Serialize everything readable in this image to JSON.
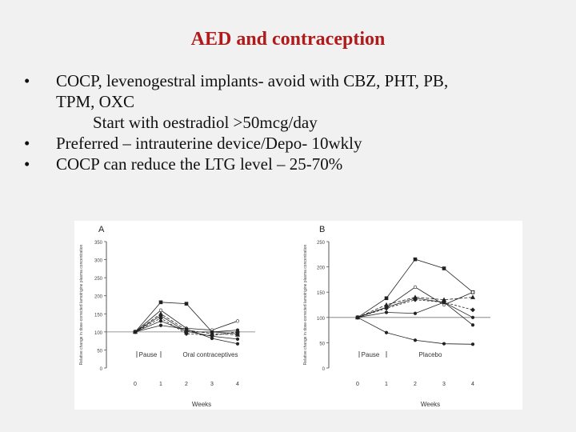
{
  "slide": {
    "title": "AED and contraception",
    "bullets": [
      {
        "marker": "•",
        "line1": "COCP, levenogestral implants- avoid with CBZ, PHT, PB,",
        "line2": "TPM, OXC"
      },
      {
        "marker": "",
        "line1": "Start with oestradiol >50mcg/day"
      },
      {
        "marker": "•",
        "line1": "Preferred – intrauterine device/Depo- 10wkly"
      },
      {
        "marker": "•",
        "line1": "COCP can reduce the LTG level – 25-70%"
      }
    ]
  },
  "chart_data": [
    {
      "type": "line",
      "panel": "A",
      "xlabel": "Weeks",
      "ylabel": "Relative change in dose-corrected lamotrigine plasma concentration",
      "x": [
        0,
        1,
        2,
        3,
        4
      ],
      "xlim": [
        0,
        4
      ],
      "ylim": [
        0,
        350
      ],
      "yticks": [
        0,
        50,
        100,
        150,
        200,
        250,
        300,
        350
      ],
      "reference_line": 100,
      "phase_labels": [
        "Pause",
        "Oral contraceptives"
      ],
      "series": [
        {
          "values": [
            100,
            182,
            178,
            100,
            95
          ]
        },
        {
          "values": [
            100,
            160,
            110,
            105,
            130
          ]
        },
        {
          "values": [
            100,
            150,
            105,
            95,
            92
          ]
        },
        {
          "values": [
            100,
            145,
            100,
            100,
            105
          ]
        },
        {
          "values": [
            100,
            138,
            95,
            90,
            100
          ]
        },
        {
          "values": [
            100,
            130,
            102,
            88,
            80
          ]
        },
        {
          "values": [
            100,
            118,
            108,
            82,
            67
          ]
        }
      ]
    },
    {
      "type": "line",
      "panel": "B",
      "xlabel": "Weeks",
      "ylabel": "Relative change in dose-corrected lamotrigine plasma concentration",
      "x": [
        0,
        1,
        2,
        3,
        4
      ],
      "xlim": [
        0,
        4
      ],
      "ylim": [
        0,
        250
      ],
      "yticks": [
        0,
        50,
        100,
        150,
        200,
        250
      ],
      "reference_line": 100,
      "phase_labels": [
        "Pause",
        "Placebo"
      ],
      "series": [
        {
          "values": [
            100,
            138,
            215,
            197,
            150
          ]
        },
        {
          "values": [
            100,
            120,
            160,
            125,
            150
          ]
        },
        {
          "values": [
            100,
            125,
            140,
            135,
            140
          ]
        },
        {
          "values": [
            100,
            120,
            138,
            130,
            100
          ]
        },
        {
          "values": [
            100,
            118,
            135,
            130,
            115
          ]
        },
        {
          "values": [
            100,
            110,
            108,
            130,
            85
          ]
        },
        {
          "values": [
            100,
            70,
            55,
            48,
            47
          ]
        }
      ]
    }
  ]
}
